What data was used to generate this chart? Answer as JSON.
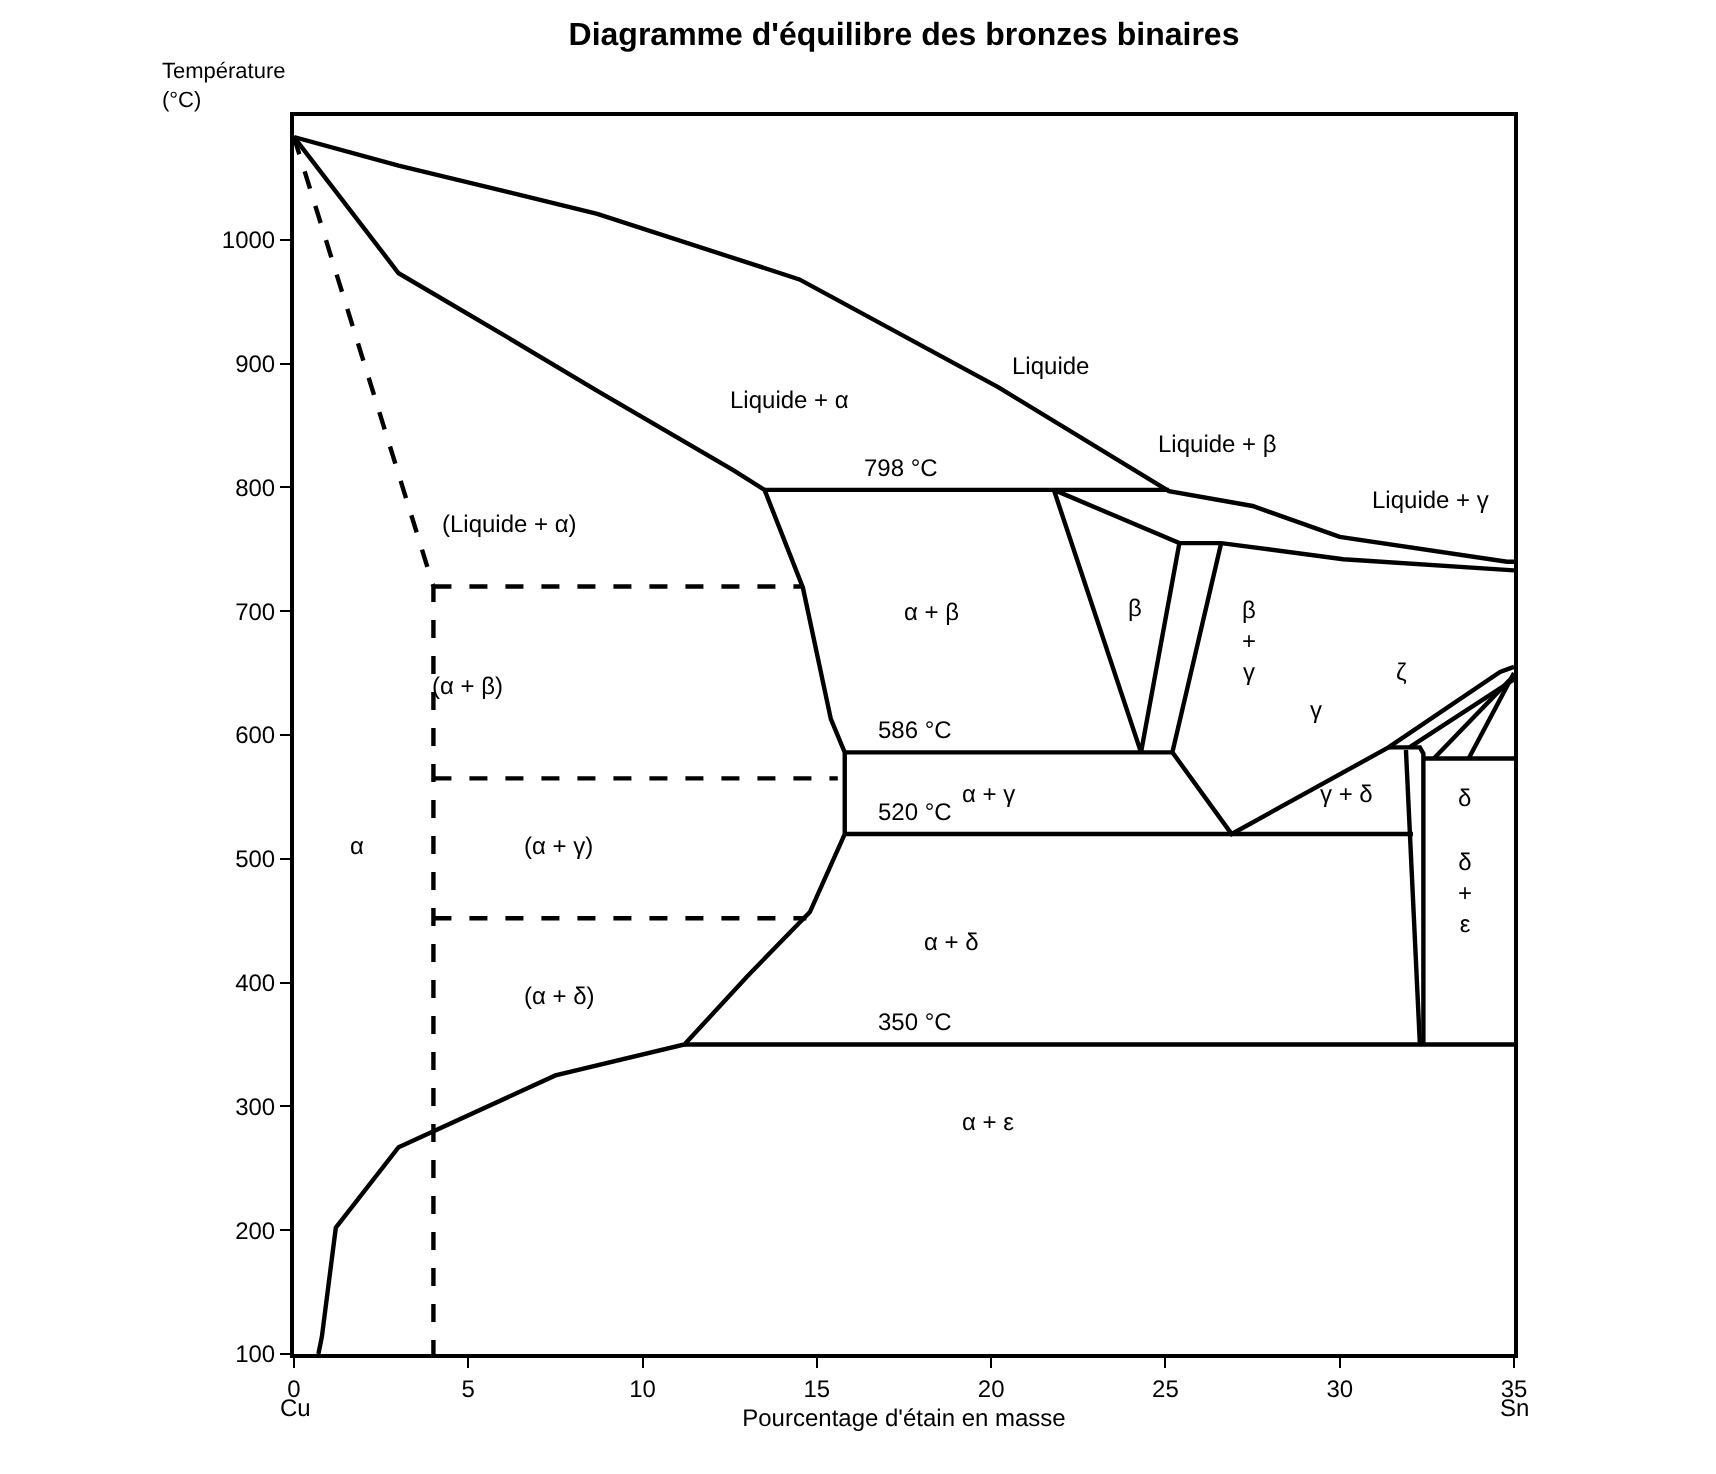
{
  "chart_data": {
    "type": "line",
    "title": "Diagramme d'équilibre des bronzes binaires",
    "xlabel": "Pourcentage d'étain en masse",
    "ylabel": "Température\n(°C)",
    "xlim": [
      0,
      35
    ],
    "ylim": [
      100,
      1100
    ],
    "xticks": [
      0,
      5,
      10,
      15,
      20,
      25,
      30,
      35
    ],
    "yticks": [
      100,
      200,
      300,
      400,
      500,
      600,
      700,
      800,
      900,
      1000
    ],
    "grid": false,
    "marker": "none",
    "series": [
      {
        "color": "#000000",
        "line_style": "solid",
        "x": [
          0,
          3.0,
          8.7,
          14.5,
          20.2,
          25.1,
          27.5,
          30.0,
          34.8,
          35
        ],
        "values": [
          1083,
          1060,
          1021,
          968,
          881,
          797,
          785,
          760,
          740,
          740
        ]
      },
      {
        "color": "#000000",
        "line_style": "solid",
        "x": [
          0,
          3.0,
          5.9,
          8.7,
          12.6,
          13.5,
          14.6,
          15.4,
          15.8,
          15.8,
          14.8,
          13.0,
          11.2,
          7.5,
          3.0,
          1.2,
          0.8,
          0.7
        ],
        "values": [
          1083,
          973,
          925,
          878,
          814,
          798,
          719,
          613,
          586,
          520,
          457,
          405,
          350,
          325,
          267,
          202,
          114,
          100
        ]
      },
      {
        "color": "#000000",
        "line_style": "solid",
        "x": [
          13.5,
          25.1
        ],
        "values": [
          798,
          798
        ]
      },
      {
        "color": "#000000",
        "line_style": "solid",
        "x": [
          21.8,
          25.4,
          26.6,
          30.1,
          35
        ],
        "values": [
          798,
          755,
          755,
          742,
          733
        ]
      },
      {
        "color": "#000000",
        "line_style": "solid",
        "x": [
          21.8,
          24.3,
          25.4
        ],
        "values": [
          798,
          586,
          755
        ]
      },
      {
        "color": "#000000",
        "line_style": "solid",
        "x": [
          26.6,
          25.2,
          26.9,
          31.4,
          34.6,
          35
        ],
        "values": [
          755,
          586,
          520,
          590,
          651,
          655
        ]
      },
      {
        "color": "#000000",
        "line_style": "solid",
        "x": [
          15.8,
          25.2
        ],
        "values": [
          586,
          586
        ]
      },
      {
        "color": "#000000",
        "line_style": "solid",
        "x": [
          15.8,
          32.1
        ],
        "values": [
          520,
          520
        ]
      },
      {
        "color": "#000000",
        "line_style": "solid",
        "x": [
          11.2,
          35
        ],
        "values": [
          350,
          350
        ]
      },
      {
        "color": "#000000",
        "line_style": "solid",
        "x": [
          31.4,
          32.3,
          32.4,
          32.4
        ],
        "values": [
          590,
          590,
          585,
          350
        ]
      },
      {
        "color": "#000000",
        "line_style": "solid",
        "x": [
          31.9,
          32.3
        ],
        "values": [
          588,
          350
        ]
      },
      {
        "color": "#000000",
        "line_style": "solid",
        "x": [
          32.4,
          35
        ],
        "values": [
          581,
          581
        ]
      },
      {
        "color": "#000000",
        "line_style": "solid",
        "x": [
          32.0,
          35
        ],
        "values": [
          590,
          645
        ]
      },
      {
        "color": "#000000",
        "line_style": "solid",
        "x": [
          32.7,
          35
        ],
        "values": [
          581,
          648
        ]
      },
      {
        "color": "#000000",
        "line_style": "solid",
        "x": [
          33.7,
          35
        ],
        "values": [
          581,
          650
        ]
      },
      {
        "color": "#000000",
        "line_style": "dashed",
        "x": [
          0,
          4.0,
          4.0
        ],
        "values": [
          1083,
          720,
          100
        ]
      },
      {
        "color": "#000000",
        "line_style": "dashed",
        "x": [
          4.0,
          14.6
        ],
        "values": [
          720,
          720
        ]
      },
      {
        "color": "#000000",
        "line_style": "dashed",
        "x": [
          4.0,
          15.6
        ],
        "values": [
          565,
          565
        ]
      },
      {
        "color": "#000000",
        "line_style": "dashed",
        "x": [
          4.0,
          14.7
        ],
        "values": [
          452,
          452
        ]
      }
    ],
    "annotations": [
      "Liquide",
      "Liquide + α",
      "Liquide + β",
      "Liquide + γ",
      "(Liquide + α)",
      "α + β",
      "β",
      "β\n+\nγ",
      "(α + β)",
      "γ",
      "ζ",
      "α + γ",
      "γ + δ",
      "δ",
      "δ\n+\nε",
      "α",
      "(α + γ)",
      "α + δ",
      "(α + δ)",
      "α + ε",
      {
        "text": "798 °C",
        "x": 17.4,
        "y": 798
      },
      {
        "text": "586 °C",
        "x": 17.8,
        "y": 586
      },
      {
        "text": "520 °C",
        "x": 17.8,
        "y": 520
      },
      {
        "text": "350 °C",
        "x": 17.8,
        "y": 350
      },
      {
        "text": "Cu",
        "x": 0
      },
      {
        "text": "Sn",
        "x": 35
      }
    ]
  }
}
